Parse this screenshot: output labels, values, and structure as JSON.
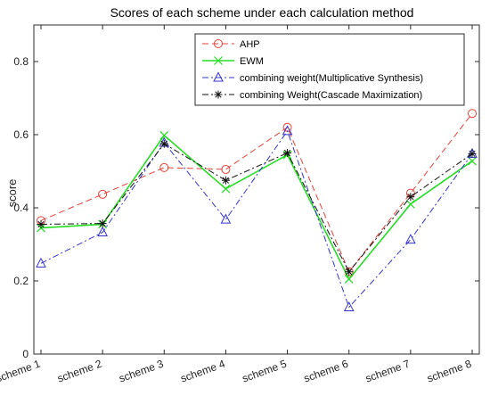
{
  "chart_data": {
    "type": "line",
    "title": "Scores of each scheme under each calculation method",
    "xlabel": "",
    "ylabel": "score",
    "categories": [
      "scheme 1",
      "scheme 2",
      "scheme 3",
      "scheme 4",
      "scheme 5",
      "scheme 6",
      "scheme 7",
      "scheme 8"
    ],
    "ylim": [
      0,
      0.9
    ],
    "yticks": [
      0,
      0.2,
      0.4,
      0.6,
      0.8
    ],
    "ytick_labels": [
      "0",
      "0.2",
      "0.4",
      "0.6",
      "0.8"
    ],
    "grid": false,
    "legend_position": "top-right",
    "series": [
      {
        "name": "AHP",
        "values": [
          0.365,
          0.437,
          0.51,
          0.505,
          0.62,
          0.225,
          0.44,
          0.658
        ],
        "color": "#e8413a",
        "dash": "dashed",
        "marker": "circle"
      },
      {
        "name": "EWM",
        "values": [
          0.345,
          0.355,
          0.598,
          0.452,
          0.545,
          0.205,
          0.41,
          0.528
        ],
        "color": "#22dd22",
        "dash": "solid",
        "marker": "x"
      },
      {
        "name": "combining weight(Multiplicative Synthesis)",
        "values": [
          0.248,
          0.333,
          0.578,
          0.368,
          0.61,
          0.128,
          0.313,
          0.548
        ],
        "color": "#3333cc",
        "dash": "dashdot",
        "marker": "triangle"
      },
      {
        "name": "combining Weight(Cascade Maximization)",
        "values": [
          0.355,
          0.357,
          0.575,
          0.475,
          0.55,
          0.225,
          0.43,
          0.548
        ],
        "color": "#111111",
        "dash": "dashdot",
        "marker": "star"
      }
    ]
  }
}
